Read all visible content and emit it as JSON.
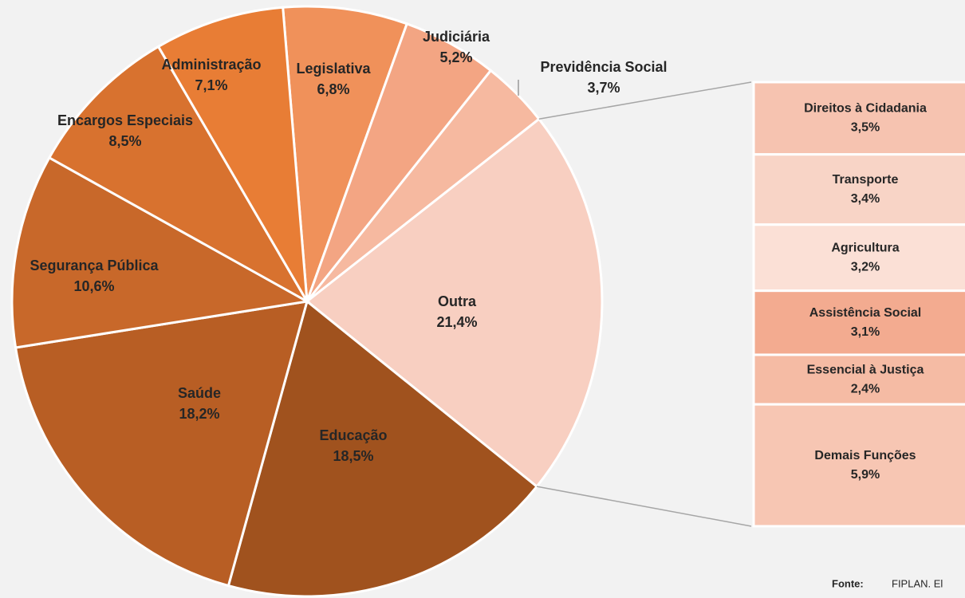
{
  "chart_data": {
    "type": "pie",
    "categories": [
      "Legislativa",
      "Judiciária",
      "Previdência Social",
      "Outra",
      "Educação",
      "Saúde",
      "Segurança Pública",
      "Encargos Especiais",
      "Administração"
    ],
    "values": [
      6.8,
      5.2,
      3.7,
      21.4,
      18.5,
      18.2,
      10.6,
      8.5,
      7.1
    ],
    "value_labels": [
      "6,8%",
      "5,2%",
      "3,7%",
      "21,4%",
      "18,5%",
      "18,2%",
      "10,6%",
      "8,5%",
      "7,1%"
    ],
    "colors": [
      "#f0915a",
      "#f3a583",
      "#f6b9a0",
      "#f8cfc1",
      "#a0521e",
      "#b85e24",
      "#c8682a",
      "#d8722f",
      "#e87d35"
    ],
    "breakdown": {
      "categories": [
        "Direitos à Cidadania",
        "Transporte",
        "Agricultura",
        "Assistência Social",
        "Essencial à Justiça",
        "Demais Funções"
      ],
      "values": [
        3.5,
        3.4,
        3.2,
        3.1,
        2.4,
        5.9
      ],
      "value_labels": [
        "3,5%",
        "3,4%",
        "3,2%",
        "3,1%",
        "2,4%",
        "5,9%"
      ],
      "colors": [
        "#f6c3b0",
        "#f8d4c6",
        "#fbe0d6",
        "#f3ab90",
        "#f5bba4",
        "#f7c6b3"
      ]
    },
    "source": {
      "label": "Fonte:",
      "text": "FIPLAN. El"
    }
  }
}
